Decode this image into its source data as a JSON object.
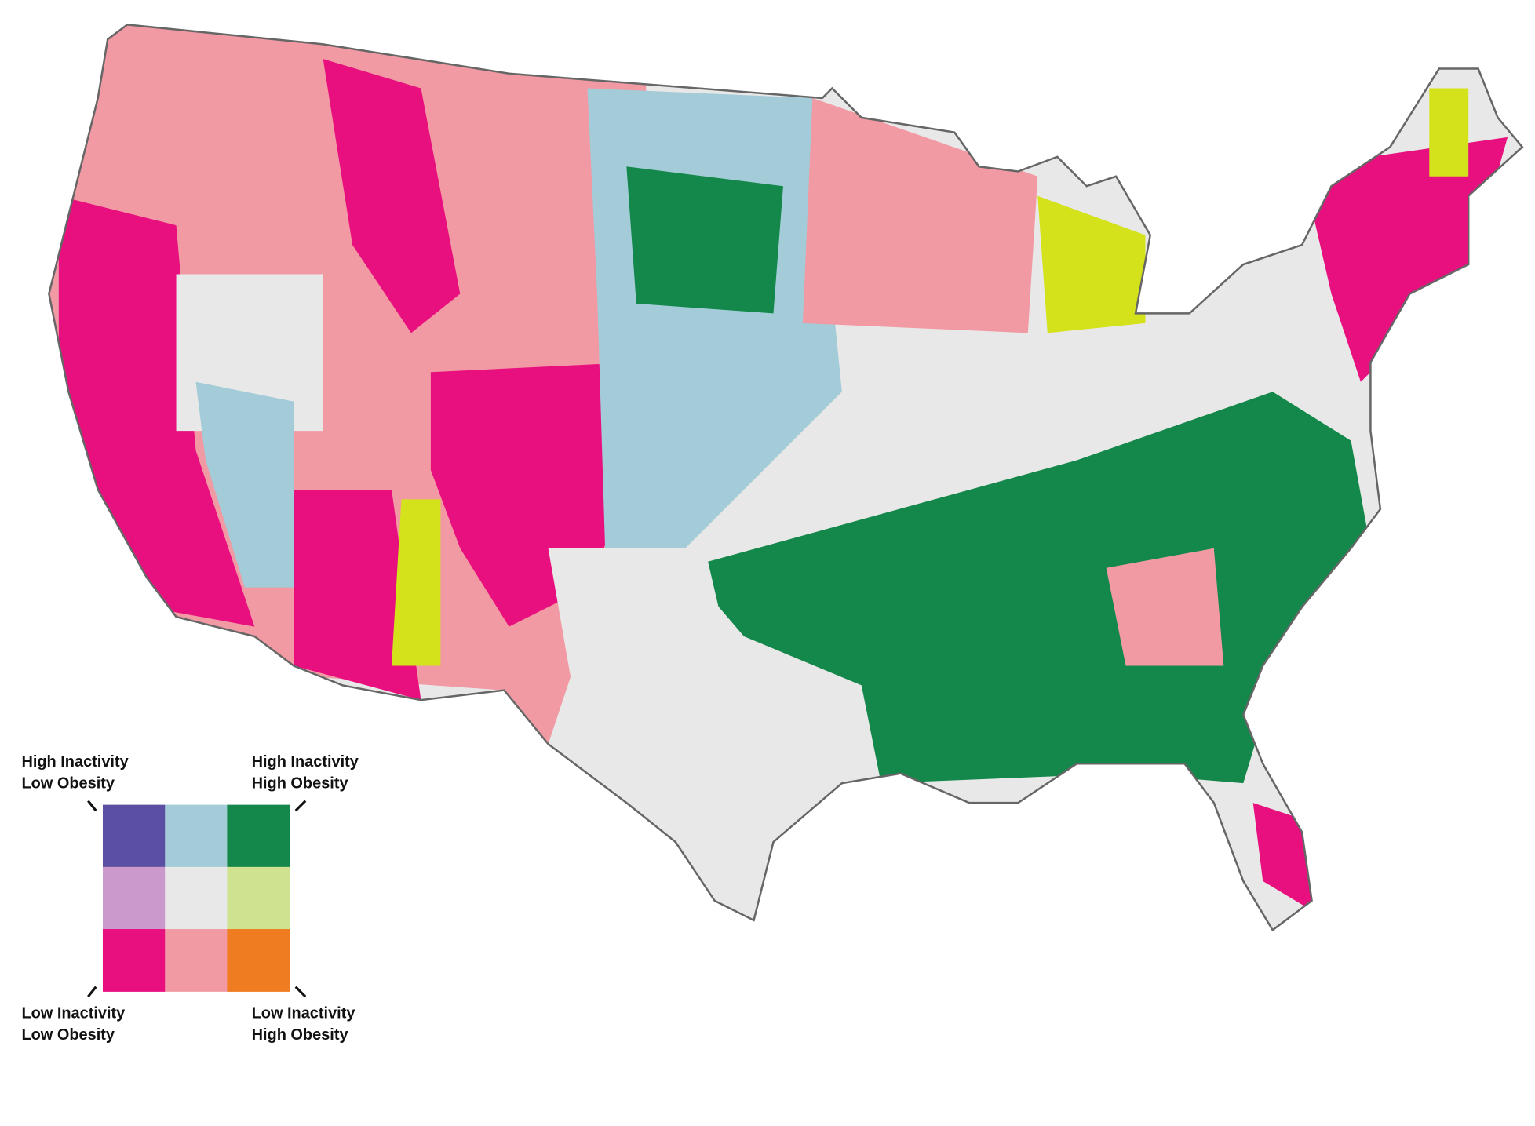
{
  "legend": {
    "top_left": [
      "High Inactivity",
      "Low Obesity"
    ],
    "top_right": [
      "High Inactivity",
      "High Obesity"
    ],
    "bottom_left": [
      "Low Inactivity",
      "Low Obesity"
    ],
    "bottom_right": [
      "Low Inactivity",
      "High Obesity"
    ],
    "colors": [
      [
        "#5b4fa3",
        "#a3cbd8",
        "#13884a"
      ],
      [
        "#cc99cc",
        "#e8e8e8",
        "#cfe28f"
      ],
      [
        "#e8107e",
        "#f29aa4",
        "#f07c22"
      ]
    ]
  }
}
